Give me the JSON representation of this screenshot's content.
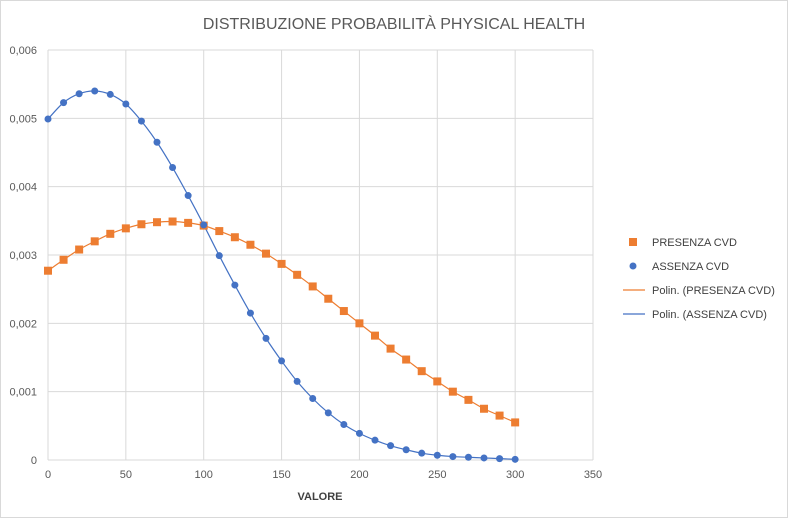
{
  "chart_data": {
    "type": "scatter",
    "title": "DISTRIBUZIONE PROBABILITÀ PHYSICAL HEALTH",
    "xlabel": "VALORE",
    "ylabel": "",
    "xlim": [
      0,
      350
    ],
    "ylim": [
      0,
      0.006
    ],
    "x_ticks": [
      "0",
      "50",
      "100",
      "150",
      "200",
      "250",
      "300",
      "350"
    ],
    "y_ticks": [
      "0",
      "0,001",
      "0,002",
      "0,003",
      "0,004",
      "0,005",
      "0,006"
    ],
    "grid": true,
    "legend_position": "right",
    "series": [
      {
        "name": "PRESENZA CVD",
        "marker": "square",
        "color": "#ED7D31",
        "x": [
          0,
          10,
          20,
          30,
          40,
          50,
          60,
          70,
          80,
          90,
          100,
          110,
          120,
          130,
          140,
          150,
          160,
          170,
          180,
          190,
          200,
          210,
          220,
          230,
          240,
          250,
          260,
          270,
          280,
          290,
          300
        ],
        "y": [
          0.00277,
          0.00293,
          0.00308,
          0.0032,
          0.00331,
          0.00339,
          0.00345,
          0.00348,
          0.00349,
          0.00347,
          0.00343,
          0.00335,
          0.00326,
          0.00315,
          0.00302,
          0.00287,
          0.00271,
          0.00254,
          0.00236,
          0.00218,
          0.002,
          0.00182,
          0.00163,
          0.00147,
          0.0013,
          0.00115,
          0.001,
          0.00088,
          0.00075,
          0.00065,
          0.00055
        ]
      },
      {
        "name": "ASSENZA CVD",
        "marker": "circle",
        "color": "#4472C4",
        "x": [
          0,
          10,
          20,
          30,
          40,
          50,
          60,
          70,
          80,
          90,
          100,
          110,
          120,
          130,
          140,
          150,
          160,
          170,
          180,
          190,
          200,
          210,
          220,
          230,
          240,
          250,
          260,
          270,
          280,
          290,
          300
        ],
        "y": [
          0.00499,
          0.00523,
          0.00536,
          0.0054,
          0.00535,
          0.00521,
          0.00496,
          0.00465,
          0.00428,
          0.00387,
          0.00344,
          0.00299,
          0.00256,
          0.00215,
          0.00178,
          0.00145,
          0.00115,
          0.0009,
          0.00069,
          0.00052,
          0.00039,
          0.00029,
          0.00021,
          0.00015,
          0.0001,
          7e-05,
          5e-05,
          4e-05,
          3e-05,
          2e-05,
          1e-05
        ]
      }
    ],
    "trendlines": [
      {
        "name": "Polin. (PRESENZA CVD)",
        "of_series": "PRESENZA CVD",
        "color": "#ED7D31"
      },
      {
        "name": "Polin. (ASSENZA CVD)",
        "of_series": "ASSENZA CVD",
        "color": "#4472C4"
      }
    ],
    "gridline_color": "#d9d9d9",
    "axis_text_color": "#595959"
  }
}
